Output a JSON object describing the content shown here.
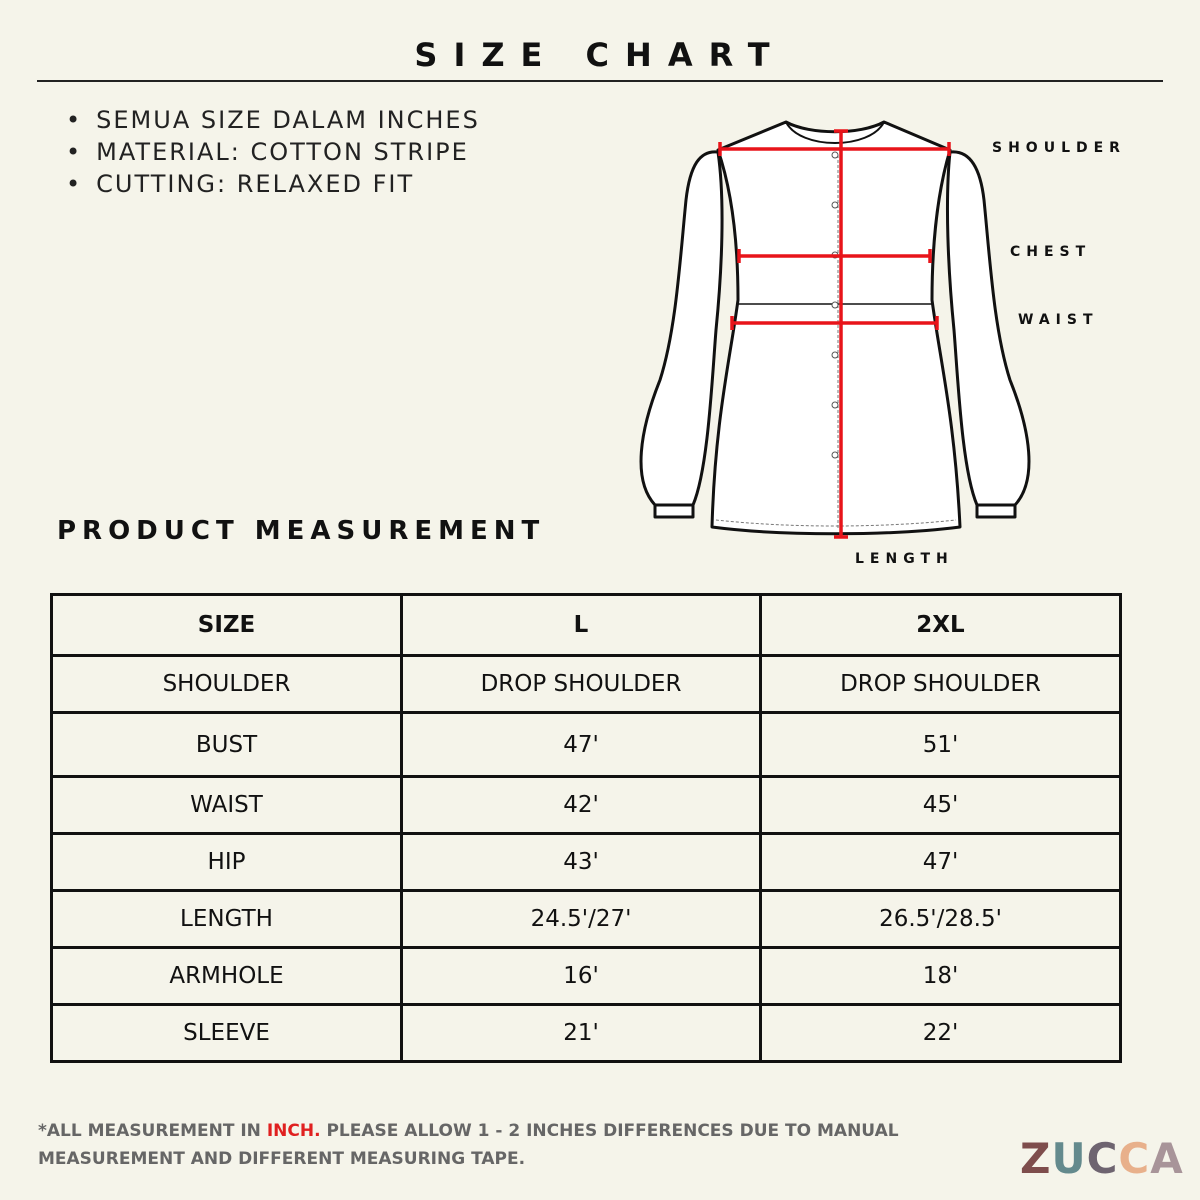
{
  "title": "SIZE CHART",
  "bullets": [
    "SEMUA SIZE DALAM INCHES",
    "MATERIAL: COTTON STRIPE",
    "CUTTING: RELAXED FIT"
  ],
  "diagram": {
    "labels": {
      "shoulder": "SHOULDER",
      "chest": "CHEST",
      "waist": "WAIST",
      "length": "LENGTH"
    },
    "measure_color": "#e8141a"
  },
  "section_title": "PRODUCT MEASUREMENT",
  "table": {
    "headers": [
      "SIZE",
      "L",
      "2XL"
    ],
    "rows": [
      [
        "SHOULDER",
        "DROP SHOULDER",
        "DROP SHOULDER"
      ],
      [
        "BUST",
        "47'",
        "51'"
      ],
      [
        "WAIST",
        "42'",
        "45'"
      ],
      [
        "HIP",
        "43'",
        "47'"
      ],
      [
        "LENGTH",
        "24.5'/27'",
        "26.5'/28.5'"
      ],
      [
        "ARMHOLE",
        "16'",
        "18'"
      ],
      [
        "SLEEVE",
        "21'",
        "22'"
      ]
    ]
  },
  "footer": {
    "prefix": "*ALL MEASUREMENT IN ",
    "highlight": "INCH.",
    "rest": " PLEASE ALLOW 1 - 2 INCHES DIFFERENCES DUE TO MANUAL",
    "line2": "MEASUREMENT AND DIFFERENT MEASURING TAPE.",
    "highlight_color": "#e02020"
  },
  "logo": {
    "text": "ZUCCA",
    "letters": [
      {
        "char": "Z",
        "color": "#7e4d4c"
      },
      {
        "char": "U",
        "color": "#648a8d"
      },
      {
        "char": "C",
        "color": "#6e6470"
      },
      {
        "char": "C",
        "color": "#e8b08b"
      },
      {
        "char": "A",
        "color": "#a89499"
      }
    ]
  }
}
